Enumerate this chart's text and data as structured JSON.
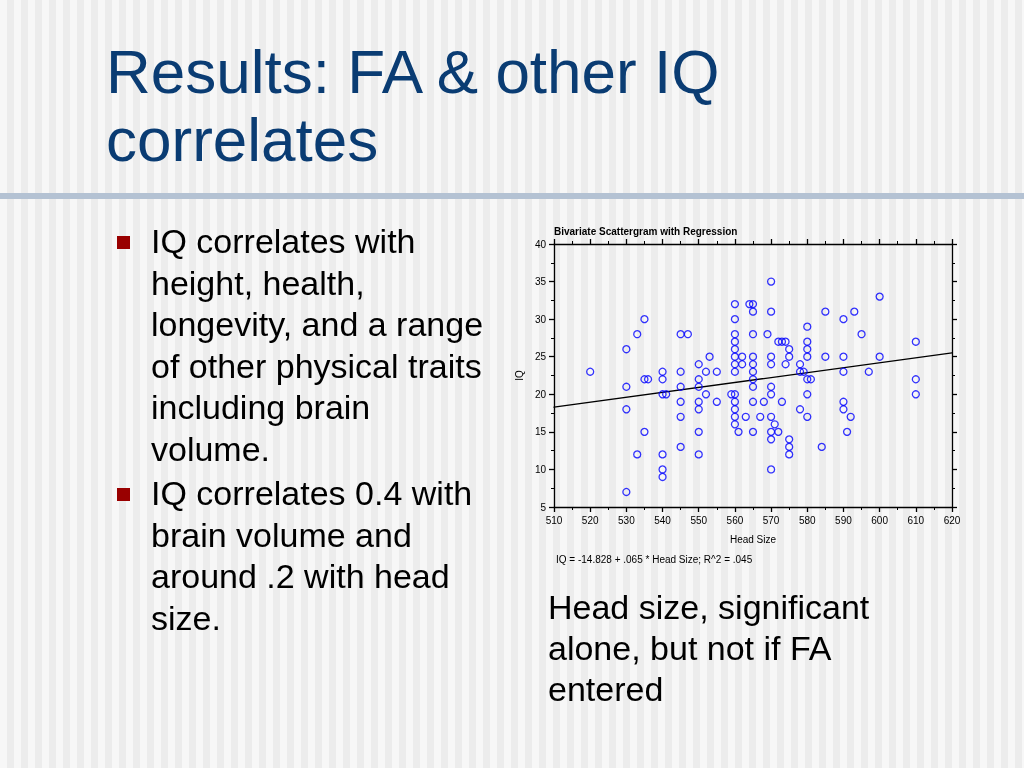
{
  "chart_data": {
    "type": "scatter",
    "title": "Results: FA & other IQ correlates",
    "subtitle": "Bivariate Scattergram with Regression",
    "xlabel": "Head Size",
    "ylabel": "IQ",
    "annotations": [
      "IQ correlates with height, health, longevity, and a range of other physical traits including brain volume.",
      "IQ correlates 0.4 with brain volume and around .2 with head size.",
      "Head size, significant alone, but not if FA entered",
      "IQ = -14.828 + .065 * Head Size; R^2 = .045"
    ],
    "xlim": [
      510,
      620
    ],
    "xticks": [
      510,
      520,
      530,
      540,
      550,
      560,
      570,
      580,
      590,
      600,
      610,
      620
    ],
    "ylim": [
      5,
      40
    ],
    "yticks": [
      5,
      10,
      15,
      20,
      25,
      30,
      35,
      40
    ],
    "marker": "circle",
    "series": [
      {
        "color": "#0000ff",
        "x": [
          520,
          530,
          530,
          530,
          530,
          533,
          533,
          535,
          535,
          535,
          536,
          540,
          540,
          540,
          540,
          540,
          540,
          541,
          545,
          545,
          545,
          545,
          545,
          545,
          547,
          550,
          550,
          550,
          550,
          550,
          550,
          550,
          552,
          552,
          553,
          555,
          555,
          559,
          560,
          560,
          560,
          560,
          560,
          560,
          560,
          560,
          560,
          560,
          560,
          560,
          560,
          561,
          562,
          562,
          563,
          564,
          565,
          565,
          565,
          565,
          565,
          565,
          565,
          565,
          565,
          565,
          567,
          568,
          569,
          570,
          570,
          570,
          570,
          570,
          570,
          570,
          570,
          570,
          570,
          571,
          572,
          572,
          573,
          573,
          574,
          574,
          575,
          575,
          575,
          575,
          575,
          578,
          578,
          578,
          579,
          580,
          580,
          580,
          580,
          580,
          580,
          580,
          581,
          584,
          585,
          585,
          590,
          590,
          590,
          590,
          590,
          591,
          592,
          593,
          595,
          597,
          600,
          600,
          610,
          610,
          610
        ],
        "values": [
          23,
          26,
          21,
          18,
          7,
          28,
          12,
          30,
          22,
          15,
          22,
          23,
          22,
          20,
          12,
          10,
          9,
          20,
          28,
          23,
          21,
          19,
          17,
          13,
          28,
          24,
          22,
          21,
          19,
          18,
          15,
          12,
          23,
          20,
          25,
          23,
          19,
          20,
          32,
          30,
          28,
          27,
          26,
          25,
          24,
          23,
          20,
          19,
          18,
          17,
          16,
          15,
          25,
          24,
          17,
          32,
          32,
          31,
          28,
          25,
          24,
          23,
          22,
          21,
          19,
          15,
          17,
          19,
          28,
          35,
          31,
          25,
          24,
          21,
          20,
          17,
          15,
          14,
          10,
          16,
          27,
          15,
          27,
          19,
          27,
          24,
          26,
          25,
          14,
          13,
          12,
          24,
          23,
          18,
          23,
          29,
          27,
          26,
          25,
          22,
          20,
          17,
          22,
          13,
          31,
          25,
          30,
          25,
          23,
          19,
          18,
          15,
          17,
          31,
          28,
          23,
          33,
          25,
          27,
          22,
          20
        ]
      },
      {
        "type": "line",
        "color": "#000000",
        "marker": "none",
        "x": [
          510,
          620
        ],
        "values": [
          18.3,
          25.5
        ]
      }
    ]
  }
}
